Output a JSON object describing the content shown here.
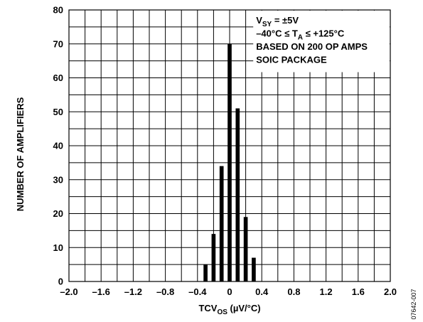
{
  "chart_data": {
    "type": "bar",
    "title": "",
    "xlabel": {
      "main": "TCV",
      "sub": "OS",
      "unit": " (µV/°C)"
    },
    "ylabel": "NUMBER OF AMPLIFIERS",
    "xlim": [
      -2.0,
      2.0
    ],
    "ylim": [
      0,
      80
    ],
    "x_ticks": [
      -2.0,
      -1.6,
      -1.2,
      -0.8,
      -0.4,
      0,
      0.4,
      0.8,
      1.2,
      1.6,
      2.0
    ],
    "x_tick_labels": [
      "–2.0",
      "–1.6",
      "–1.2",
      "–0.8",
      "–0.4",
      "0",
      "0.4",
      "0.8",
      "1.2",
      "1.6",
      "2.0"
    ],
    "y_ticks": [
      0,
      10,
      20,
      30,
      40,
      50,
      60,
      70,
      80
    ],
    "y_tick_labels": [
      "0",
      "10",
      "20",
      "30",
      "40",
      "50",
      "60",
      "70",
      "80"
    ],
    "grid": true,
    "bar_width": 0.05,
    "x": [
      -0.3,
      -0.2,
      -0.1,
      0.0,
      0.1,
      0.2,
      0.3
    ],
    "values": [
      5,
      14,
      34,
      70,
      51,
      19,
      7
    ],
    "legend": {
      "placement": "top-right",
      "lines": [
        {
          "main": "V",
          "sub": "SY",
          "rest": " = ±5V"
        },
        {
          "main": "–40°C ≤ T",
          "sub": "A",
          "rest": " ≤ +125°C"
        },
        {
          "main": "BASED ON 200 OP AMPS",
          "sub": "",
          "rest": ""
        },
        {
          "main": "SOIC PACKAGE",
          "sub": "",
          "rest": ""
        }
      ]
    },
    "figure_id": "07642-007"
  }
}
